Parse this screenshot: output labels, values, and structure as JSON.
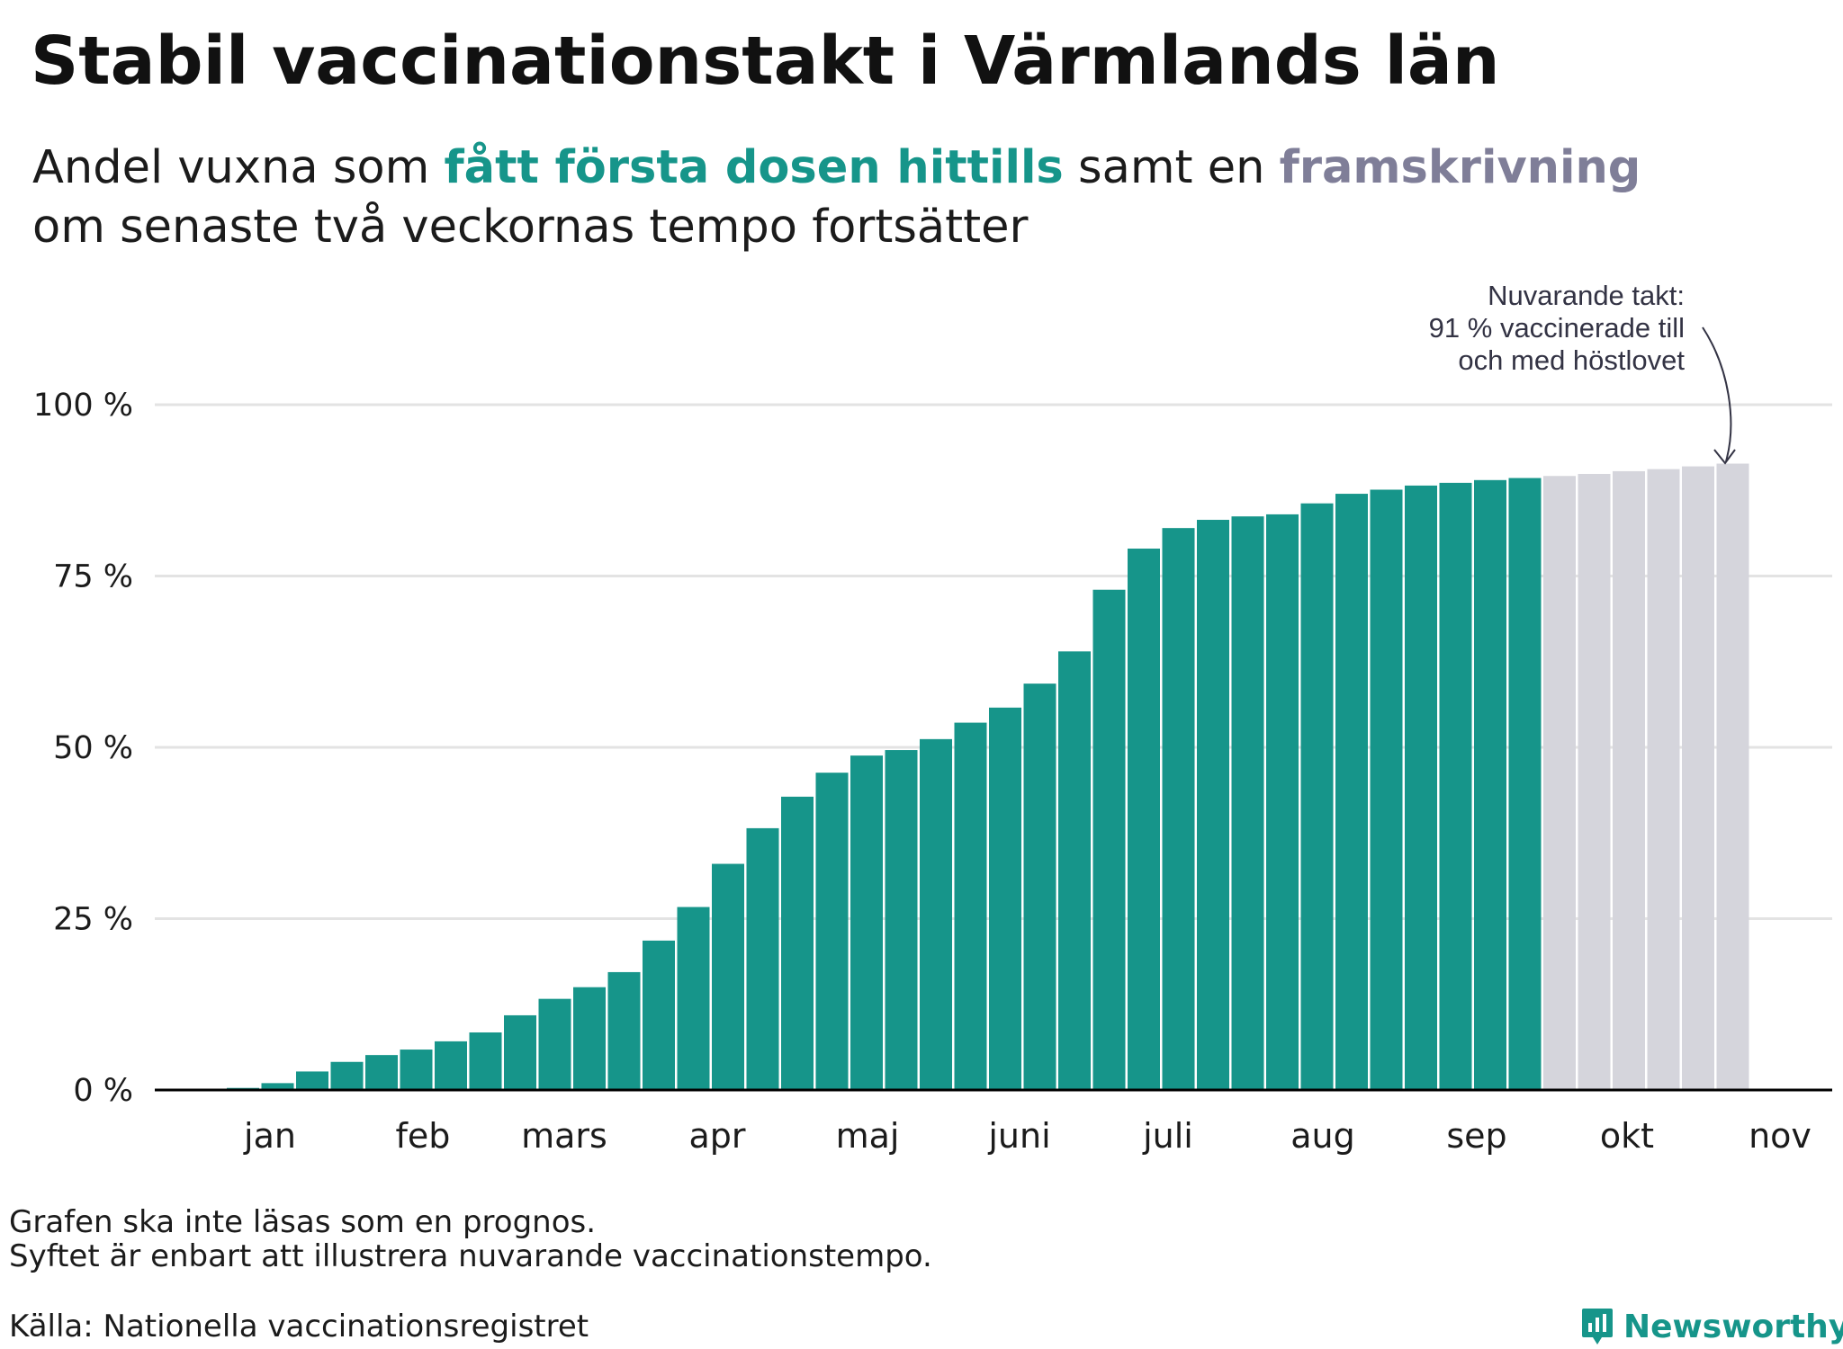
{
  "header": {
    "title": "Stabil vaccinationstakt i Värmlands län",
    "subtitle_part1": "Andel vuxna som ",
    "subtitle_highlight1": "fått första dosen hittills",
    "subtitle_part2": " samt en ",
    "subtitle_highlight2": "framskrivning",
    "subtitle_line2": "om senaste två veckornas tempo fortsätter"
  },
  "colors": {
    "actual": "#16958a",
    "projection": "#d5d5dc",
    "projection_text": "#7f7e98",
    "grid": "#e3e3e3",
    "axis": "#000000"
  },
  "chart_data": {
    "type": "bar",
    "ylim": [
      0,
      100
    ],
    "y_ticks": [
      {
        "value": 0,
        "label": "0 %"
      },
      {
        "value": 25,
        "label": "25 %"
      },
      {
        "value": 50,
        "label": "50 %"
      },
      {
        "value": 75,
        "label": "75 %"
      },
      {
        "value": 100,
        "label": "100 %"
      }
    ],
    "x_month_labels": [
      "jan",
      "feb",
      "mars",
      "apr",
      "maj",
      "juni",
      "juli",
      "aug",
      "sep",
      "okt",
      "nov"
    ],
    "grid": true,
    "series": [
      {
        "kind": "actual",
        "values": [
          0.3,
          1.0,
          2.7,
          4.1,
          5.1,
          5.9,
          7.1,
          8.4,
          10.9,
          13.3,
          15.0,
          17.2,
          21.8,
          26.7,
          33.0,
          38.2,
          42.8,
          46.3,
          48.8,
          49.6,
          51.2,
          53.6,
          55.8,
          59.3,
          64.0,
          73.0,
          79.0,
          82.0,
          83.2,
          83.7,
          84.0,
          85.6,
          87.0,
          87.6,
          88.2,
          88.6,
          89.0,
          89.3
        ]
      },
      {
        "kind": "projection",
        "values": [
          89.6,
          89.9,
          90.3,
          90.6,
          91.0,
          91.4
        ]
      }
    ],
    "annotation": {
      "line1": "Nuvarande takt:",
      "line2": "91 % vaccinerade till",
      "line3": "och med höstlovet"
    }
  },
  "footer": {
    "note_line1": "Grafen ska inte läsas som en prognos.",
    "note_line2": "Syftet är enbart att illustrera nuvarande vaccinationstempo.",
    "source": "Källa: Nationella vaccinationsregistret",
    "brand": "Newsworthy",
    "brand_icon": "newsworthy-logo-icon"
  }
}
